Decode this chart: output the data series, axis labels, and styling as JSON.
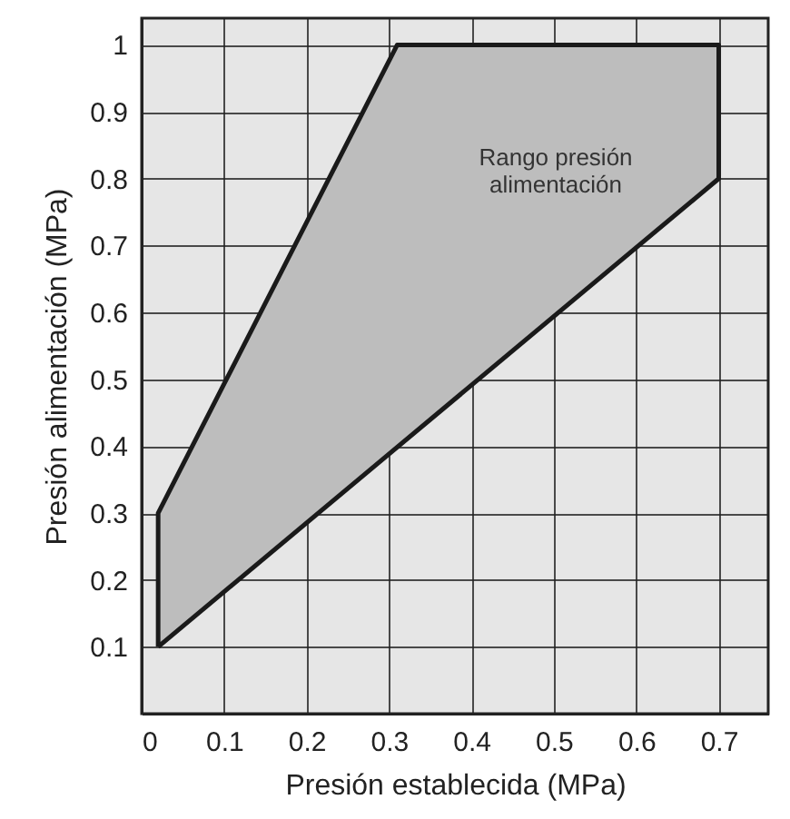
{
  "chart_data": {
    "type": "area",
    "xlabel": "Presión establecida (MPa)",
    "ylabel": "Presión alimentación (MPa)",
    "series": [
      {
        "color": "#bdbdbd",
        "x": [
          0.02,
          0.02,
          0.31,
          0.7,
          0.7,
          0.02
        ],
        "values": [
          0.1,
          0.3,
          1,
          1,
          0.8,
          0.1
        ]
      }
    ],
    "annotations": [
      "Rango presión\nalimentación"
    ],
    "xlim": [
      0,
      0.76
    ],
    "ylim": [
      0,
      1.04
    ],
    "xticks": [
      0,
      0.1,
      0.2,
      0.3,
      0.4,
      0.5,
      0.6,
      0.7
    ],
    "yticks": [
      0.1,
      0.2,
      0.3,
      0.4,
      0.5,
      0.6,
      0.7,
      0.8,
      0.9,
      1
    ],
    "grid": true
  }
}
